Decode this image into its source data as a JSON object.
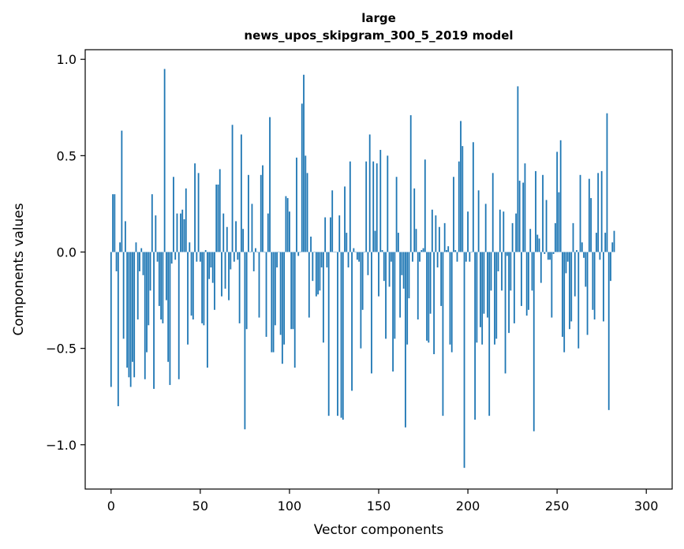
{
  "chart_data": {
    "type": "bar",
    "title_lines": [
      "large",
      "news_upos_skipgram_300_5_2019 model"
    ],
    "xlabel": "Vector components",
    "ylabel": "Components values",
    "xlim": [
      -14.5,
      314.5
    ],
    "ylim": [
      -1.23,
      1.05
    ],
    "xticks": [
      0,
      50,
      100,
      150,
      200,
      250,
      300
    ],
    "xtick_labels": [
      "0",
      "50",
      "100",
      "150",
      "200",
      "250",
      "300"
    ],
    "yticks": [
      -1.0,
      -0.5,
      0.0,
      0.5,
      1.0
    ],
    "ytick_labels": [
      "−1.0",
      "−0.5",
      "0.0",
      "0.5",
      "1.0"
    ],
    "grid": false,
    "bar_color": "#1f77b4",
    "x_start": 0,
    "values": [
      -0.7,
      0.3,
      0.3,
      -0.1,
      -0.8,
      0.05,
      0.63,
      -0.45,
      0.16,
      -0.6,
      -0.65,
      -0.7,
      -0.57,
      -0.65,
      0.05,
      -0.35,
      -0.1,
      0.02,
      -0.12,
      -0.66,
      -0.52,
      -0.38,
      -0.2,
      0.3,
      -0.71,
      0.19,
      -0.05,
      -0.28,
      -0.35,
      -0.37,
      0.95,
      -0.25,
      -0.57,
      -0.69,
      -0.06,
      0.39,
      -0.04,
      0.2,
      -0.66,
      0.2,
      0.22,
      0.17,
      0.33,
      -0.48,
      0.05,
      -0.33,
      -0.35,
      0.46,
      -0.05,
      0.41,
      -0.05,
      -0.37,
      -0.38,
      0.01,
      -0.6,
      -0.14,
      -0.08,
      -0.16,
      -0.3,
      0.35,
      0.35,
      0.43,
      -0.23,
      0.2,
      -0.19,
      0.13,
      -0.25,
      -0.09,
      0.66,
      -0.05,
      0.16,
      -0.04,
      -0.37,
      0.61,
      0.12,
      -0.92,
      -0.4,
      0.4,
      0.0,
      0.25,
      -0.1,
      0.02,
      0.0,
      -0.34,
      0.4,
      0.45,
      0.0,
      -0.44,
      0.2,
      0.7,
      -0.52,
      -0.52,
      -0.38,
      -0.08,
      0.0,
      -0.43,
      -0.58,
      -0.48,
      0.29,
      0.28,
      0.21,
      -0.4,
      -0.4,
      -0.6,
      0.49,
      -0.02,
      0.0,
      0.77,
      0.92,
      0.5,
      0.41,
      -0.34,
      0.08,
      -0.15,
      0.0,
      -0.23,
      -0.22,
      -0.2,
      -0.08,
      -0.47,
      0.18,
      -0.08,
      -0.85,
      0.18,
      0.32,
      0.0,
      0.0,
      -0.85,
      0.19,
      -0.86,
      -0.87,
      0.34,
      0.1,
      -0.08,
      0.47,
      -0.72,
      0.02,
      0.0,
      -0.04,
      -0.05,
      -0.5,
      -0.3,
      0.0,
      0.47,
      -0.12,
      0.61,
      -0.63,
      0.47,
      0.11,
      0.46,
      -0.23,
      0.53,
      0.01,
      -0.15,
      -0.45,
      0.5,
      -0.18,
      -0.05,
      -0.62,
      -0.45,
      0.39,
      0.1,
      -0.34,
      -0.12,
      -0.19,
      -0.91,
      -0.48,
      -0.24,
      0.71,
      -0.05,
      0.33,
      0.12,
      -0.35,
      -0.05,
      0.01,
      0.02,
      0.48,
      -0.46,
      -0.47,
      -0.32,
      0.22,
      -0.53,
      0.19,
      -0.08,
      0.13,
      -0.28,
      -0.85,
      0.15,
      0.01,
      0.03,
      -0.48,
      -0.52,
      0.39,
      0.01,
      -0.05,
      0.47,
      0.68,
      0.55,
      -1.12,
      -0.05,
      0.21,
      -0.05,
      0.0,
      0.57,
      -0.87,
      -0.47,
      0.32,
      -0.39,
      -0.48,
      -0.32,
      0.25,
      -0.34,
      -0.85,
      -0.2,
      0.41,
      -0.48,
      -0.45,
      -0.1,
      0.22,
      -0.2,
      0.21,
      -0.63,
      -0.02,
      -0.42,
      -0.2,
      0.15,
      -0.37,
      0.2,
      0.86,
      0.37,
      -0.28,
      0.36,
      0.46,
      -0.33,
      -0.3,
      0.12,
      -0.2,
      -0.93,
      0.42,
      0.09,
      0.07,
      -0.16,
      0.4,
      -0.01,
      0.27,
      -0.04,
      -0.04,
      -0.34,
      -0.01,
      0.15,
      0.52,
      0.31,
      0.58,
      -0.44,
      -0.52,
      -0.11,
      -0.05,
      -0.4,
      -0.36,
      0.15,
      -0.23,
      0.01,
      -0.5,
      0.4,
      0.05,
      -0.03,
      -0.18,
      -0.43,
      0.38,
      0.28,
      -0.3,
      -0.35,
      0.1,
      0.41,
      -0.04,
      0.42,
      -0.36,
      0.1,
      0.72,
      -0.82,
      -0.15,
      0.05,
      0.11
    ]
  }
}
